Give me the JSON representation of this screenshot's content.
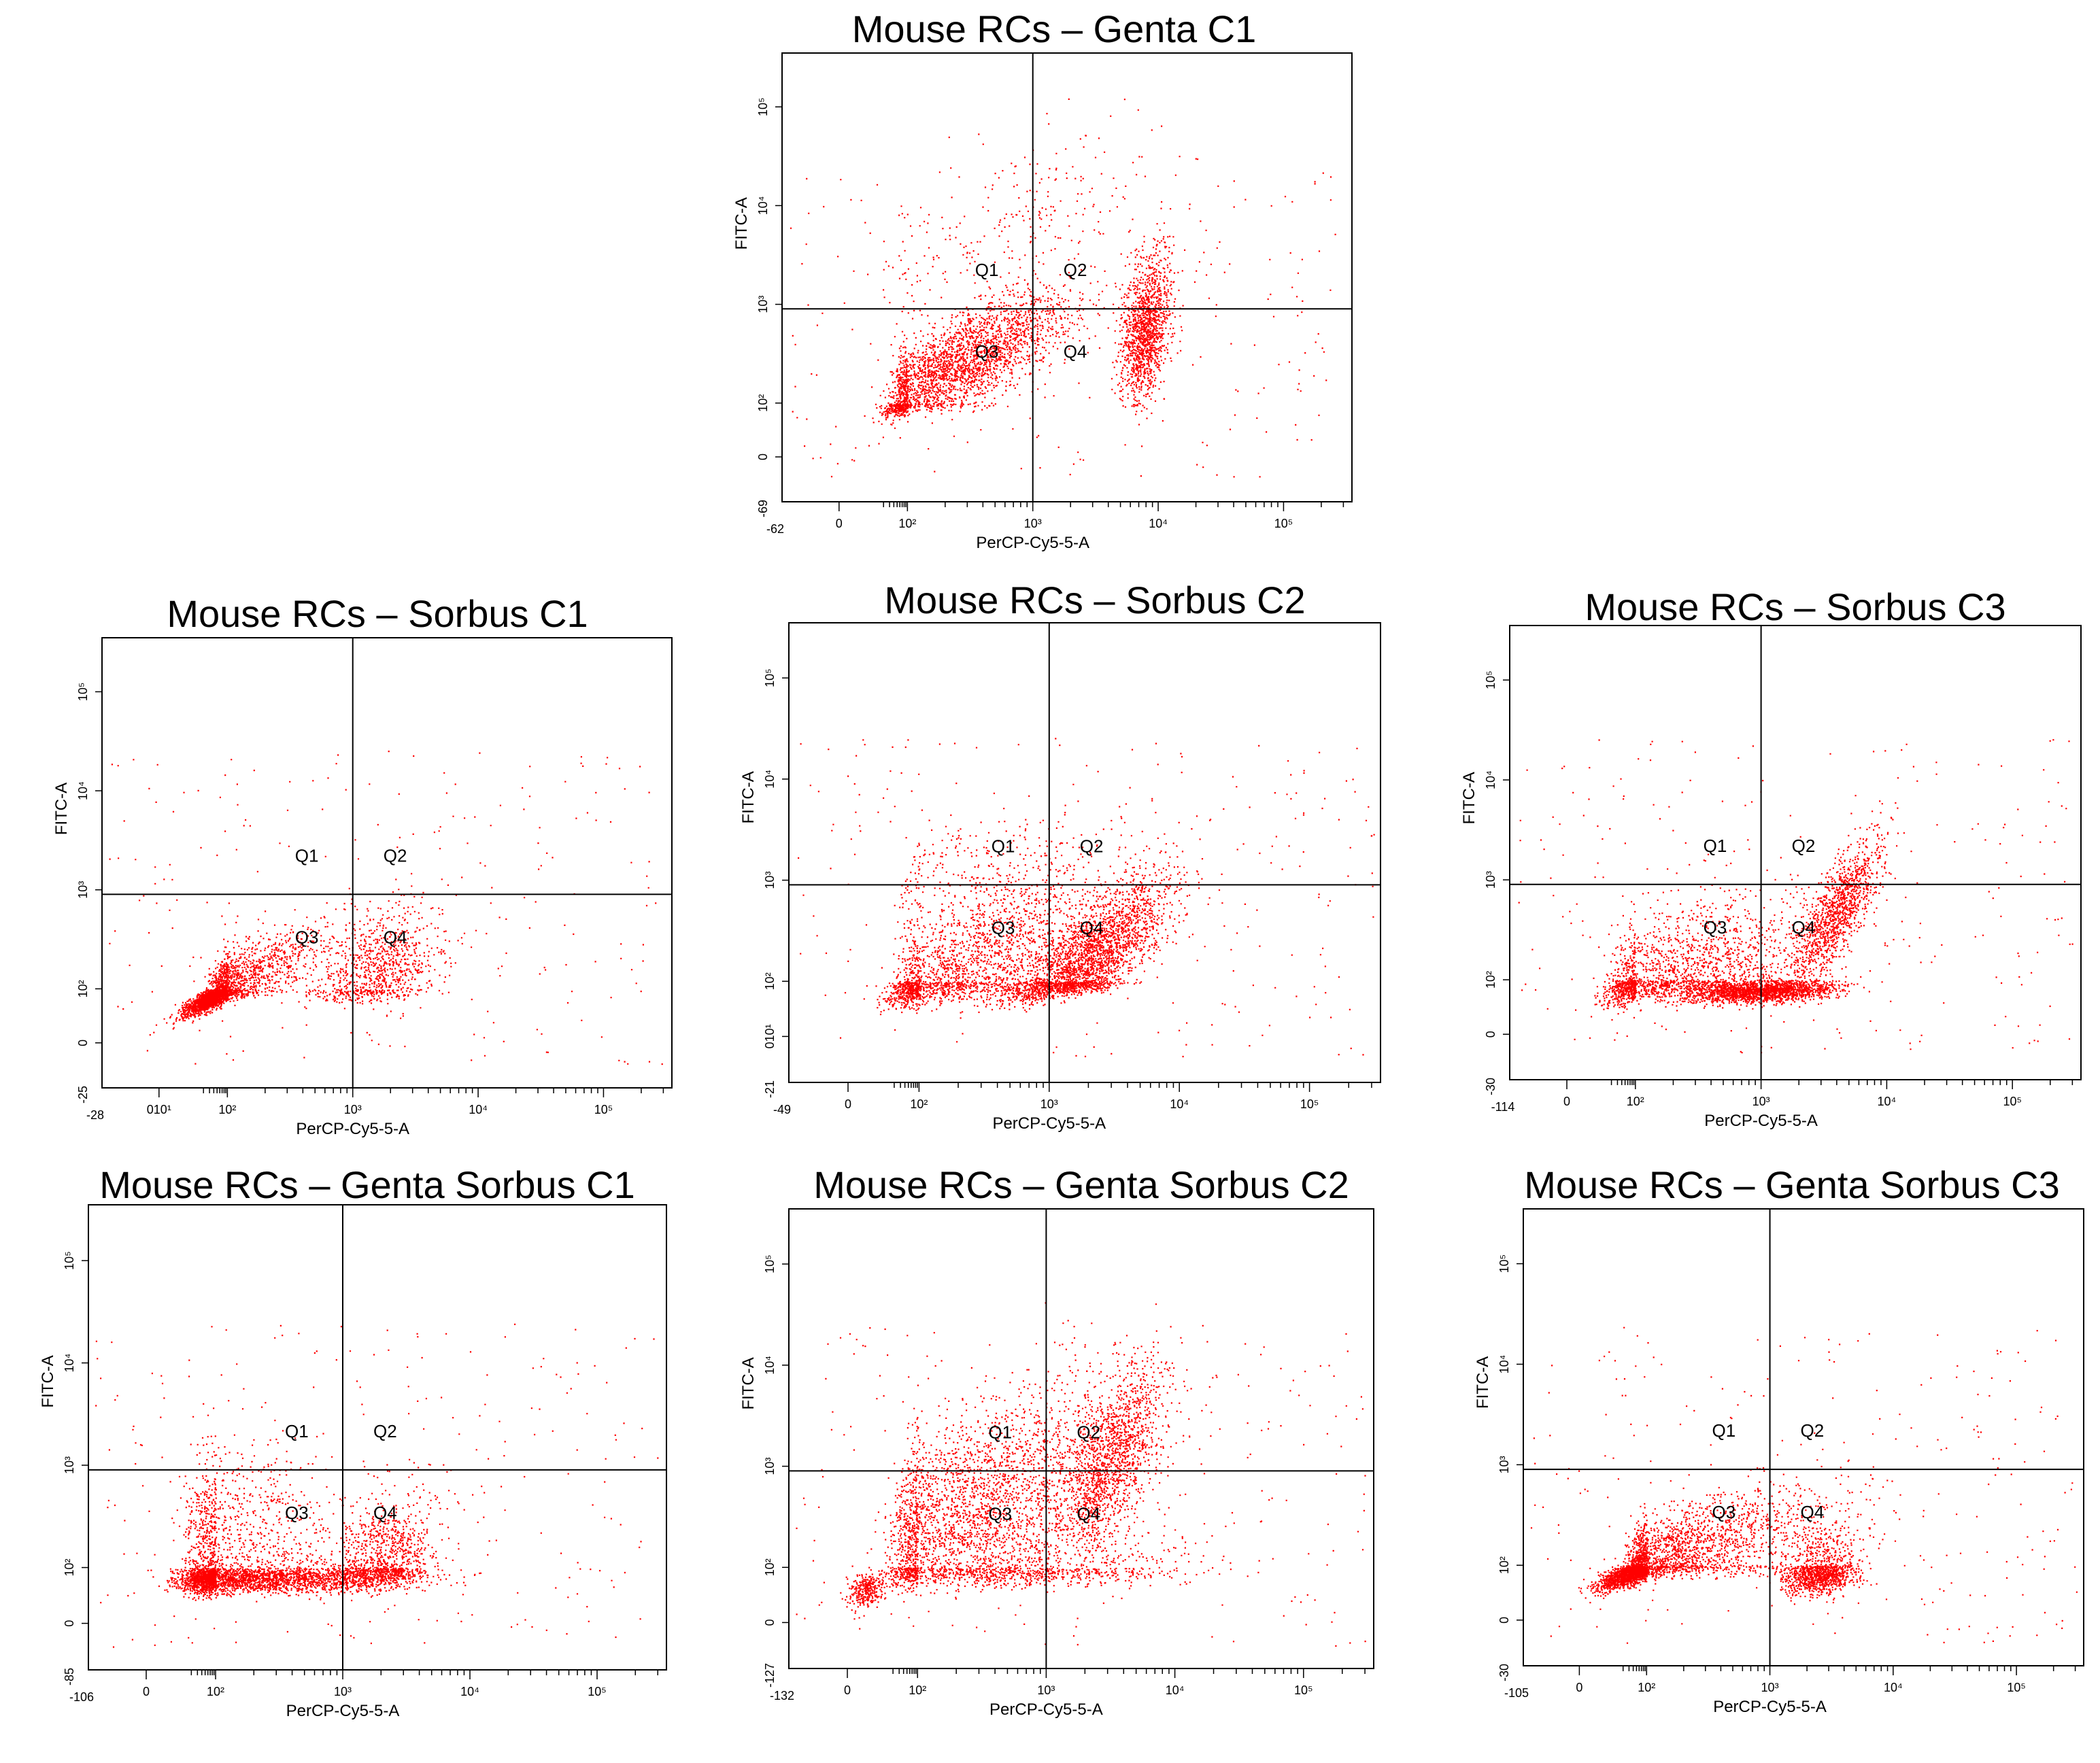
{
  "colors": {
    "dots": "#ff0000",
    "axes": "#000000",
    "background": "#ffffff"
  },
  "chart_data": [
    {
      "type": "scatter",
      "title": "Mouse RCs – Genta C1",
      "xlabel": "PerCP-Cy5-5-A",
      "ylabel": "FITC-A",
      "x_min_label": "-62",
      "y_min_label": "-69",
      "x_ticks": [
        "0",
        "10²",
        "10³",
        "10⁴",
        "10⁵"
      ],
      "y_ticks": [
        "0",
        "10²",
        "10³",
        "10⁴",
        "10⁵"
      ],
      "quadrants": [
        "Q1",
        "Q2",
        "Q3",
        "Q4"
      ],
      "x_gate": 1000,
      "y_gate": 900,
      "clusters": [
        {
          "cx": 2.4,
          "cy": 2.4,
          "sx": 0.45,
          "sy": 0.35,
          "n": 2600,
          "corr": 0.75
        },
        {
          "cx": 3.9,
          "cy": 2.75,
          "sx": 0.1,
          "sy": 0.35,
          "n": 1400,
          "corr": 0.3
        },
        {
          "cx": 2.8,
          "cy": 3.8,
          "sx": 0.6,
          "sy": 0.5,
          "n": 250,
          "corr": 0.6
        }
      ]
    },
    {
      "type": "scatter",
      "title": "Mouse RCs – Sorbus C1",
      "xlabel": "PerCP-Cy5-5-A",
      "ylabel": "FITC-A",
      "x_min_label": "-28",
      "y_min_label": "-25",
      "x_ticks": [
        "010¹",
        "10²",
        "10³",
        "10⁴",
        "10⁵"
      ],
      "y_ticks": [
        "0",
        "10²",
        "10³",
        "10⁴",
        "10⁵"
      ],
      "quadrants": [
        "Q1",
        "Q2",
        "Q3",
        "Q4"
      ],
      "x_gate": 1000,
      "y_gate": 900,
      "clusters": [
        {
          "cx": 1.7,
          "cy": 1.8,
          "sx": 0.45,
          "sy": 0.35,
          "n": 3000,
          "corr": 0.85
        },
        {
          "cx": 3.2,
          "cy": 2.2,
          "sx": 0.25,
          "sy": 0.3,
          "n": 900,
          "corr": 0.3
        }
      ]
    },
    {
      "type": "scatter",
      "title": "Mouse RCs – Sorbus C2",
      "xlabel": "PerCP-Cy5-5-A",
      "ylabel": "FITC-A",
      "x_min_label": "-49",
      "y_min_label": "-21",
      "x_ticks": [
        "0",
        "10²",
        "10³",
        "10⁴",
        "10⁵"
      ],
      "y_ticks": [
        "010¹",
        "10²",
        "10³",
        "10⁴",
        "10⁵"
      ],
      "quadrants": [
        "Q1",
        "Q2",
        "Q3",
        "Q4"
      ],
      "x_gate": 1000,
      "y_gate": 900,
      "clusters": [
        {
          "cx": 2.3,
          "cy": 2.1,
          "sx": 0.55,
          "sy": 0.45,
          "n": 2000,
          "corr": 0.6
        },
        {
          "cx": 3.3,
          "cy": 2.2,
          "sx": 0.3,
          "sy": 0.4,
          "n": 2600,
          "corr": 0.75
        },
        {
          "cx": 2.5,
          "cy": 3.1,
          "sx": 0.5,
          "sy": 0.3,
          "n": 300,
          "corr": 0.2
        }
      ]
    },
    {
      "type": "scatter",
      "title": "Mouse RCs – Sorbus C3",
      "xlabel": "PerCP-Cy5-5-A",
      "ylabel": "FITC-A",
      "x_min_label": "-114",
      "y_min_label": "-30",
      "x_ticks": [
        "0",
        "10²",
        "10³",
        "10⁴",
        "10⁵"
      ],
      "y_ticks": [
        "0",
        "10²",
        "10³",
        "10⁴",
        "10⁵"
      ],
      "quadrants": [
        "Q1",
        "Q2",
        "Q3",
        "Q4"
      ],
      "x_gate": 1000,
      "y_gate": 900,
      "clusters": [
        {
          "cx": 2.3,
          "cy": 2.0,
          "sx": 0.55,
          "sy": 0.4,
          "n": 1800,
          "corr": 0.5
        },
        {
          "cx": 3.0,
          "cy": 1.6,
          "sx": 0.3,
          "sy": 0.2,
          "n": 1800,
          "corr": 0.3
        },
        {
          "cx": 3.6,
          "cy": 2.7,
          "sx": 0.18,
          "sy": 0.35,
          "n": 1200,
          "corr": 0.8
        }
      ]
    },
    {
      "type": "scatter",
      "title": "Mouse RCs – Genta Sorbus C1",
      "xlabel": "PerCP-Cy5-5-A",
      "ylabel": "FITC-A",
      "x_min_label": "-106",
      "y_min_label": "-85",
      "x_ticks": [
        "0",
        "10²",
        "10³",
        "10⁴",
        "10⁵"
      ],
      "y_ticks": [
        "0",
        "10²",
        "10³",
        "10⁴",
        "10⁵"
      ],
      "quadrants": [
        "Q1",
        "Q2",
        "Q3",
        "Q4"
      ],
      "x_gate": 1000,
      "y_gate": 900,
      "clusters": [
        {
          "cx": 2.2,
          "cy": 1.6,
          "sx": 0.6,
          "sy": 0.25,
          "n": 2600,
          "corr": 0.1
        },
        {
          "cx": 2.0,
          "cy": 2.3,
          "sx": 0.45,
          "sy": 0.45,
          "n": 1000,
          "corr": 0.2
        },
        {
          "cx": 3.3,
          "cy": 2.0,
          "sx": 0.2,
          "sy": 0.35,
          "n": 1100,
          "corr": 0.3
        }
      ]
    },
    {
      "type": "scatter",
      "title": "Mouse RCs – Genta Sorbus C2",
      "xlabel": "PerCP-Cy5-5-A",
      "ylabel": "FITC-A",
      "x_min_label": "-132",
      "y_min_label": "-127",
      "x_ticks": [
        "0",
        "10²",
        "10³",
        "10⁴",
        "10⁵"
      ],
      "y_ticks": [
        "0",
        "10²",
        "10³",
        "10⁴",
        "10⁵"
      ],
      "quadrants": [
        "Q1",
        "Q2",
        "Q3",
        "Q4"
      ],
      "x_gate": 1000,
      "y_gate": 900,
      "clusters": [
        {
          "cx": 2.4,
          "cy": 2.6,
          "sx": 0.55,
          "sy": 0.55,
          "n": 2600,
          "corr": 0.5
        },
        {
          "cx": 3.5,
          "cy": 3.1,
          "sx": 0.2,
          "sy": 0.45,
          "n": 1500,
          "corr": 0.6
        },
        {
          "cx": 0.5,
          "cy": 1.2,
          "sx": 0.25,
          "sy": 0.3,
          "n": 300,
          "corr": 0.2
        },
        {
          "cx": 2.9,
          "cy": 1.9,
          "sx": 0.6,
          "sy": 0.3,
          "n": 800,
          "corr": 0.1
        }
      ]
    },
    {
      "type": "scatter",
      "title": "Mouse RCs – Genta Sorbus C3",
      "xlabel": "PerCP-Cy5-5-A",
      "ylabel": "FITC-A",
      "x_min_label": "-105",
      "y_min_label": "-30",
      "x_ticks": [
        "0",
        "10²",
        "10³",
        "10⁴",
        "10⁵"
      ],
      "y_ticks": [
        "0",
        "10²",
        "10³",
        "10⁴",
        "10⁵"
      ],
      "quadrants": [
        "Q1",
        "Q2",
        "Q3",
        "Q4"
      ],
      "x_gate": 1000,
      "y_gate": 900,
      "clusters": [
        {
          "cx": 1.8,
          "cy": 1.9,
          "sx": 0.55,
          "sy": 0.35,
          "n": 2800,
          "corr": 0.8
        },
        {
          "cx": 3.4,
          "cy": 1.7,
          "sx": 0.15,
          "sy": 0.35,
          "n": 1100,
          "corr": 0.2
        },
        {
          "cx": 2.9,
          "cy": 2.2,
          "sx": 0.5,
          "sy": 0.3,
          "n": 500,
          "corr": 0.3
        }
      ]
    }
  ]
}
